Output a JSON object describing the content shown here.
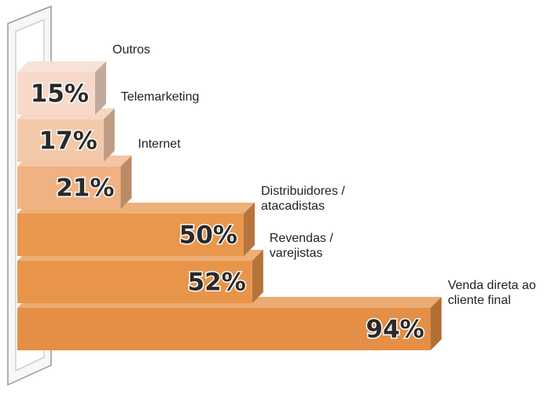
{
  "chart_data": {
    "type": "bar3d",
    "categories": [
      "Outros",
      "Telemarketing",
      "Internet",
      "Distribuidores / atacadistas",
      "Revendas / varejistas",
      "Venda direta ao cliente final"
    ],
    "values": [
      15,
      17,
      21,
      50,
      52,
      94
    ],
    "value_labels": [
      "15%",
      "17%",
      "21%",
      "50%",
      "52%",
      "94%"
    ],
    "colors": [
      "#f6d9c9",
      "#f4c9aa",
      "#f0b283",
      "#e9974d",
      "#e8954a",
      "#e48f45"
    ]
  }
}
